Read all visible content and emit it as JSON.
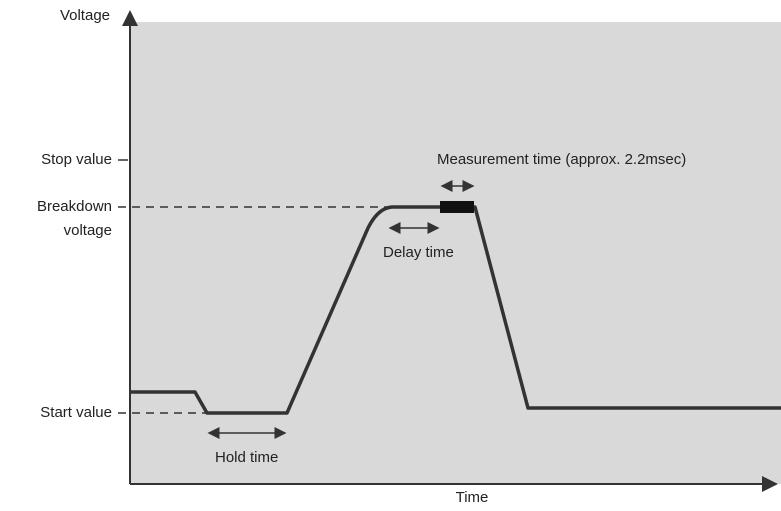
{
  "axes": {
    "y_label": "Voltage",
    "x_label": "Time"
  },
  "levels": {
    "stop": "Stop value",
    "breakdown": [
      "Breakdown",
      "voltage"
    ],
    "start": "Start value"
  },
  "annotations": {
    "measurement": "Measurement time (approx. 2.2msec)",
    "delay": "Delay time",
    "hold": "Hold time"
  }
}
